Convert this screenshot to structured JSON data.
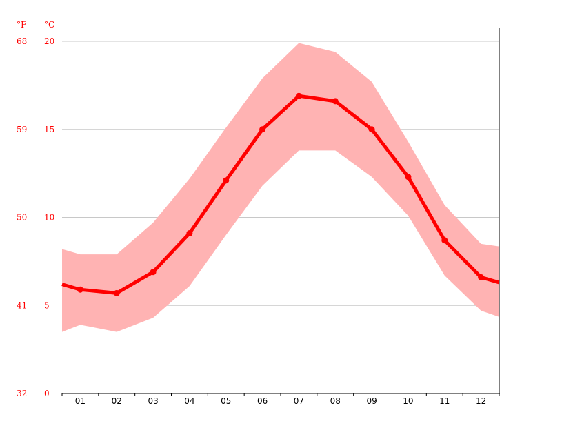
{
  "chart_data": {
    "type": "line",
    "title": "",
    "xlabel": "",
    "ylabel": "",
    "left_axis_unit": "°F",
    "right_axis_unit": "°C",
    "categories": [
      "01",
      "02",
      "03",
      "04",
      "05",
      "06",
      "07",
      "08",
      "09",
      "10",
      "11",
      "12"
    ],
    "celsius_ticks": [
      "0",
      "5",
      "10",
      "15",
      "20"
    ],
    "fahrenheit_ticks": [
      "32",
      "41",
      "50",
      "59",
      "68"
    ],
    "ylim": [
      0,
      20
    ],
    "grid": true,
    "legend": "none",
    "series": [
      {
        "values": [
          5.9,
          5.7,
          6.9,
          9.1,
          12.1,
          15.0,
          16.9,
          16.6,
          15.0,
          12.3,
          8.7,
          6.6
        ]
      }
    ],
    "band": {
      "upper": [
        7.9,
        7.9,
        9.7,
        12.2,
        15.1,
        17.9,
        19.9,
        19.4,
        17.7,
        14.3,
        10.7,
        8.5
      ],
      "lower": [
        3.9,
        3.5,
        4.3,
        6.1,
        9.0,
        11.8,
        13.8,
        13.8,
        12.3,
        10.1,
        6.7,
        4.7
      ]
    },
    "colors": {
      "line": "#ff0000",
      "band": "#ffb3b3",
      "grid": "#c8c8c8",
      "axis": "#000000",
      "tick_text": "#ff0000"
    }
  }
}
